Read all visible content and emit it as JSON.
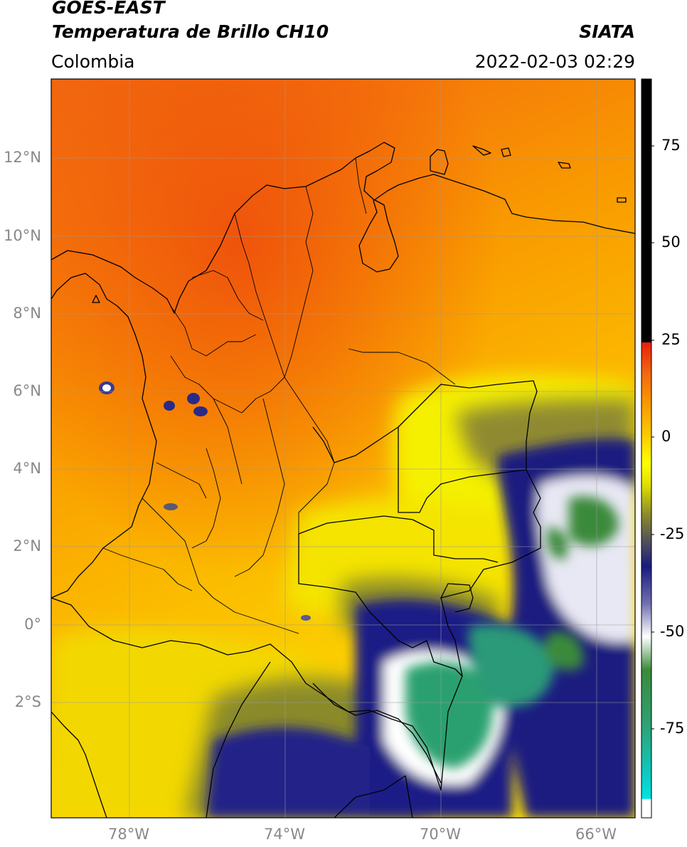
{
  "header": {
    "title_line1": "GOES-EAST",
    "title_line2": "Temperatura de Brillo CH10",
    "region": "Colombia",
    "source": "SIATA",
    "datetime": "2022-02-03 02:29"
  },
  "map": {
    "lat_ticks": [
      {
        "value": 12,
        "label": "12°N"
      },
      {
        "value": 10,
        "label": "10°N"
      },
      {
        "value": 8,
        "label": "8°N"
      },
      {
        "value": 6,
        "label": "6°N"
      },
      {
        "value": 4,
        "label": "4°N"
      },
      {
        "value": 2,
        "label": "2°N"
      },
      {
        "value": 0,
        "label": "0°"
      },
      {
        "value": -2,
        "label": "2°S"
      }
    ],
    "lon_ticks": [
      {
        "value": -78,
        "label": "78°W"
      },
      {
        "value": -74,
        "label": "74°W"
      },
      {
        "value": -70,
        "label": "70°W"
      },
      {
        "value": -66,
        "label": "66°W"
      }
    ],
    "lon_range": [
      -80,
      -65
    ],
    "lat_range": [
      -5,
      14
    ],
    "grid": true
  },
  "colorbar": {
    "ticks": [
      {
        "value": 75,
        "label": "75"
      },
      {
        "value": 50,
        "label": "50"
      },
      {
        "value": 25,
        "label": "25"
      },
      {
        "value": 0,
        "label": "0"
      },
      {
        "value": -25,
        "label": "-25"
      },
      {
        "value": -50,
        "label": "-50"
      },
      {
        "value": -75,
        "label": "-75"
      }
    ],
    "range": [
      -100,
      90
    ],
    "colors": {
      "black": "#000000",
      "red": "#e8200a",
      "orange": "#f89a00",
      "yellow": "#ffff00",
      "olive": "#8a8a2a",
      "navy": "#1a1a80",
      "white": "#ffffff",
      "green": "#3a8a3a",
      "teal": "#20c0a0",
      "cyan": "#00e0e0"
    }
  }
}
